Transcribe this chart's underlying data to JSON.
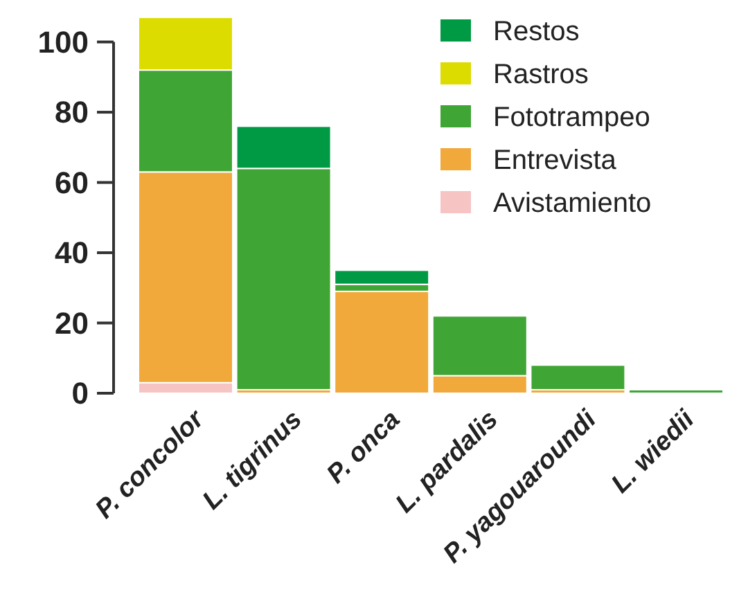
{
  "chart_data": {
    "type": "bar",
    "stacked": true,
    "categories": [
      "P. concolor",
      "L. tigrinus",
      "P. onca",
      "L. pardalis",
      "P. yagouaroundi",
      "L. wiedii"
    ],
    "series": [
      {
        "name": "Avistamiento",
        "color": "#f7c4c4",
        "values": [
          3,
          0,
          0,
          0,
          0,
          0
        ]
      },
      {
        "name": "Entrevista",
        "color": "#f0a93a",
        "values": [
          60,
          1,
          29,
          5,
          1,
          0
        ]
      },
      {
        "name": "Fototrampeo",
        "color": "#3fa535",
        "values": [
          29,
          63,
          2,
          17,
          7,
          1
        ]
      },
      {
        "name": "Rastros",
        "color": "#dcdc00",
        "values": [
          15,
          0,
          0,
          0,
          0,
          0
        ]
      },
      {
        "name": "Restos",
        "color": "#009a44",
        "values": [
          0,
          12,
          4,
          0,
          0,
          0
        ]
      }
    ],
    "ylim": [
      0,
      108
    ],
    "yticks": [
      0,
      20,
      40,
      60,
      80,
      100
    ],
    "grid": false,
    "legend": "top right"
  }
}
